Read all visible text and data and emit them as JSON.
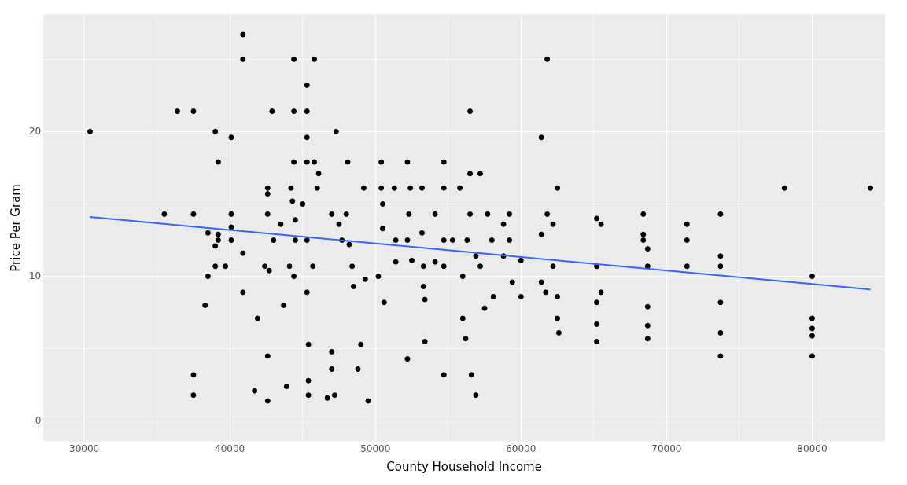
{
  "chart_data": {
    "type": "scatter",
    "xlabel": "County Household Income",
    "ylabel": "Price Per Gram",
    "xlim": [
      27200,
      85000
    ],
    "ylim": [
      -1.4,
      28.1
    ],
    "xticks": [
      30000,
      {
        "value": 35000,
        "label": null
      },
      40000,
      {
        "value": 45000,
        "label": null
      },
      50000,
      {
        "value": 55000,
        "label": null
      },
      60000,
      {
        "value": 65000,
        "label": null
      },
      70000,
      {
        "value": 75000,
        "label": null
      },
      80000
    ],
    "yticks": [
      0,
      {
        "value": 5,
        "label": null
      },
      10,
      {
        "value": 15,
        "label": null
      },
      20,
      {
        "value": 25,
        "label": null
      }
    ],
    "grid": true,
    "legend": false,
    "marker": "circle",
    "series": [
      {
        "color": "#000000",
        "x": [
          30400,
          35500,
          36400,
          37500,
          37500,
          37500,
          37500,
          38300,
          38500,
          38500,
          39000,
          39200,
          39200,
          39200,
          39000,
          39000,
          39700,
          40100,
          40100,
          40100,
          40100,
          40900,
          40900,
          40900,
          40900,
          41700,
          41900,
          42600,
          42600,
          42600,
          42400,
          42700,
          42600,
          42600,
          42900,
          43000,
          43500,
          43700,
          43900,
          44100,
          44200,
          44300,
          44400,
          44400,
          44400,
          44500,
          44500,
          44400,
          45000,
          45300,
          45300,
          45300,
          45300,
          45300,
          45300,
          45400,
          45400,
          45400,
          45800,
          45800,
          46000,
          46100,
          45700,
          47000,
          47000,
          47000,
          46700,
          47300,
          47200,
          47500,
          47700,
          48100,
          48000,
          48200,
          48400,
          48500,
          48800,
          49000,
          49200,
          49500,
          49300,
          50400,
          50400,
          50500,
          50500,
          50600,
          50200,
          51300,
          51400,
          51400,
          52200,
          52400,
          52300,
          52200,
          52500,
          52200,
          53200,
          53200,
          53300,
          53300,
          53400,
          53400,
          54100,
          54100,
          54700,
          54700,
          54700,
          54700,
          54700,
          55300,
          55800,
          56000,
          56000,
          56200,
          56300,
          56500,
          56500,
          56500,
          56600,
          56900,
          56900,
          57200,
          57200,
          57500,
          57700,
          58000,
          58100,
          58800,
          58800,
          59200,
          59200,
          59400,
          60000,
          60000,
          61400,
          61400,
          61400,
          61700,
          61800,
          61800,
          62200,
          62200,
          62500,
          62500,
          62500,
          62600,
          65200,
          65200,
          65200,
          65200,
          65200,
          65500,
          65500,
          68400,
          68400,
          68400,
          68700,
          68700,
          68700,
          68700,
          68700,
          71400,
          71400,
          71400,
          73700,
          73700,
          73700,
          73700,
          73700,
          73700,
          78100,
          80000,
          80000,
          80000,
          80000,
          80000,
          84000
        ],
        "values": [
          20,
          14.3,
          21.4,
          21.4,
          14.3,
          3.2,
          1.8,
          8,
          10,
          13,
          20,
          17.9,
          12.5,
          12.9,
          12.1,
          10.7,
          10.7,
          19.6,
          14.3,
          13.4,
          12.5,
          26.7,
          25,
          11.6,
          8.9,
          2.1,
          7.1,
          16.1,
          15.7,
          14.3,
          10.7,
          10.4,
          4.5,
          1.4,
          21.4,
          12.5,
          13.6,
          8,
          2.4,
          10.7,
          16.1,
          15.2,
          17.9,
          21.4,
          25,
          13.9,
          12.5,
          10,
          15,
          23.2,
          21.4,
          19.6,
          17.9,
          12.5,
          8.9,
          5.3,
          2.8,
          1.8,
          25,
          17.9,
          16.1,
          17.1,
          10.7,
          14.3,
          4.8,
          3.6,
          1.6,
          20,
          1.8,
          13.6,
          12.5,
          17.9,
          14.3,
          12.2,
          10.7,
          9.3,
          3.6,
          5.3,
          16.1,
          1.4,
          9.8,
          17.9,
          16.1,
          15,
          13.3,
          8.2,
          10,
          16.1,
          12.5,
          11,
          17.9,
          16.1,
          14.3,
          12.5,
          11.1,
          4.3,
          16.1,
          13,
          10.7,
          9.3,
          5.5,
          8.4,
          14.3,
          11,
          17.9,
          16.1,
          12.5,
          10.7,
          3.2,
          12.5,
          16.1,
          10,
          7.1,
          5.7,
          12.5,
          17.1,
          21.4,
          14.3,
          3.2,
          11.4,
          1.8,
          17.1,
          10.7,
          7.8,
          14.3,
          12.5,
          8.6,
          13.6,
          11.4,
          14.3,
          12.5,
          9.6,
          11.1,
          8.6,
          19.6,
          12.9,
          9.6,
          8.9,
          25,
          14.3,
          13.6,
          10.7,
          16.1,
          8.6,
          7.1,
          6.1,
          14,
          10.7,
          8.2,
          6.7,
          5.5,
          13.6,
          8.9,
          14.3,
          12.9,
          12.5,
          11.9,
          10.7,
          7.9,
          6.6,
          5.7,
          13.6,
          12.5,
          10.7,
          14.3,
          11.4,
          10.7,
          8.2,
          6.1,
          4.5,
          16.1,
          10,
          7.1,
          6.4,
          5.9,
          4.5,
          16.1
        ]
      },
      {
        "type": "line",
        "color": "#3366ff",
        "marker": "none",
        "x": [
          30400,
          84000
        ],
        "values": [
          14.1,
          9.1
        ]
      }
    ]
  }
}
